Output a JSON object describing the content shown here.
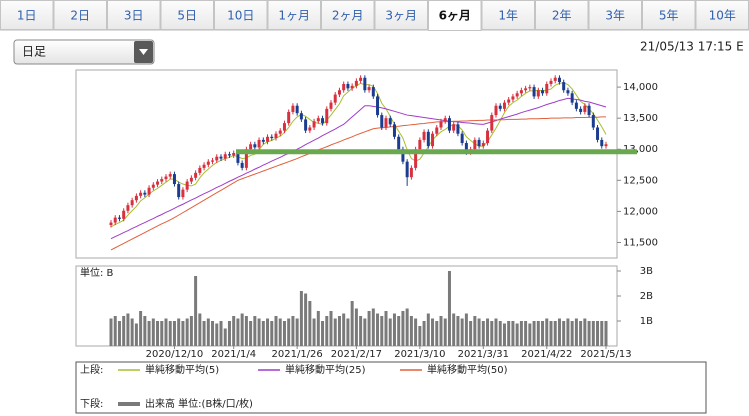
{
  "ui": {
    "tabs": [
      "1日",
      "2日",
      "3日",
      "5日",
      "10日",
      "1ヶ月",
      "2ヶ月",
      "3ヶ月",
      "6ヶ月",
      "1年",
      "2年",
      "3年",
      "5年",
      "10年"
    ],
    "active_tab": 8,
    "dropdown": "日足",
    "timestamp": "21/05/13 17:15 E"
  },
  "chart_data": {
    "type": "candlestick",
    "categories": [
      null,
      null,
      null,
      null,
      null,
      null,
      null,
      null,
      null,
      null,
      null,
      null,
      null,
      null,
      null,
      "2020/12/10",
      null,
      null,
      null,
      null,
      null,
      null,
      null,
      null,
      null,
      null,
      null,
      null,
      null,
      "2021/1/4",
      null,
      null,
      null,
      null,
      null,
      null,
      null,
      null,
      null,
      null,
      null,
      null,
      null,
      null,
      "2021/1/26",
      null,
      null,
      null,
      null,
      null,
      null,
      null,
      null,
      null,
      null,
      null,
      null,
      null,
      "2021/2/17",
      null,
      null,
      null,
      null,
      null,
      null,
      null,
      null,
      null,
      null,
      null,
      null,
      null,
      null,
      "2021/3/10",
      null,
      null,
      null,
      null,
      null,
      null,
      null,
      null,
      null,
      null,
      null,
      null,
      null,
      null,
      "2021/3/31",
      null,
      null,
      null,
      null,
      null,
      null,
      null,
      null,
      null,
      null,
      null,
      null,
      null,
      null,
      "2021/4/22",
      null,
      null,
      null,
      null,
      null,
      null,
      null,
      null,
      null,
      null,
      null,
      null,
      null,
      "2021/5/13"
    ],
    "open": [
      11780,
      11820,
      11900,
      11880,
      12010,
      12100,
      12180,
      12250,
      12300,
      12270,
      12380,
      12430,
      12480,
      12520,
      12560,
      12600,
      12440,
      12230,
      12350,
      12480,
      12540,
      12620,
      12700,
      12750,
      12800,
      12820,
      12880,
      12850,
      12920,
      12900,
      12940,
      12780,
      12700,
      13000,
      13080,
      13030,
      13150,
      13120,
      13200,
      13180,
      13250,
      13300,
      13420,
      13600,
      13700,
      13580,
      13480,
      13300,
      13350,
      13450,
      13500,
      13420,
      13650,
      13750,
      13880,
      13950,
      14050,
      13980,
      14020,
      14100,
      14150,
      13950,
      14000,
      13850,
      13550,
      13350,
      13500,
      13400,
      13200,
      13000,
      12800,
      12550,
      12700,
      13000,
      13150,
      13280,
      13050,
      13250,
      13350,
      13450,
      13500,
      13300,
      13400,
      13250,
      13100,
      12950,
      13000,
      13150,
      13050,
      13100,
      13300,
      13550,
      13700,
      13650,
      13750,
      13800,
      13850,
      13900,
      13950,
      13980,
      14000,
      13850,
      13950,
      13900,
      14050,
      14100,
      14150,
      14080,
      13950,
      13900,
      13750,
      13650,
      13600,
      13700,
      13550,
      13350,
      13150,
      13050
    ],
    "high": [
      11860,
      11940,
      11940,
      12050,
      12140,
      12220,
      12290,
      12340,
      12340,
      12420,
      12470,
      12520,
      12560,
      12600,
      12640,
      12640,
      12480,
      12390,
      12520,
      12580,
      12660,
      12740,
      12790,
      12840,
      12860,
      12920,
      12920,
      12960,
      12960,
      12980,
      12980,
      12820,
      13040,
      13120,
      13120,
      13190,
      13190,
      13240,
      13240,
      13290,
      13340,
      13460,
      13640,
      13740,
      13740,
      13620,
      13520,
      13390,
      13490,
      13540,
      13540,
      13690,
      13790,
      13920,
      13990,
      14090,
      14090,
      14060,
      14140,
      14190,
      14190,
      14040,
      14040,
      13890,
      13590,
      13540,
      13540,
      13440,
      13240,
      13040,
      12840,
      12740,
      13040,
      13190,
      13320,
      13320,
      13290,
      13390,
      13490,
      13540,
      13540,
      13440,
      13440,
      13290,
      13140,
      13040,
      13190,
      13190,
      13140,
      13340,
      13590,
      13740,
      13740,
      13790,
      13840,
      13890,
      13940,
      13990,
      14020,
      14040,
      14040,
      13990,
      13990,
      14090,
      14140,
      14190,
      14190,
      14120,
      13990,
      13940,
      13790,
      13690,
      13740,
      13740,
      13590,
      13390,
      13190,
      13120
    ],
    "low": [
      11740,
      11780,
      11840,
      11840,
      11970,
      12060,
      12140,
      12210,
      12230,
      12230,
      12340,
      12390,
      12440,
      12480,
      12520,
      12400,
      12190,
      12190,
      12310,
      12440,
      12500,
      12580,
      12660,
      12710,
      12760,
      12780,
      12810,
      12810,
      12860,
      12860,
      12740,
      12660,
      12660,
      12960,
      12990,
      12990,
      13080,
      13080,
      13140,
      13140,
      13210,
      13260,
      13380,
      13560,
      13540,
      13440,
      13260,
      13260,
      13310,
      13410,
      13380,
      13380,
      13610,
      13710,
      13840,
      13910,
      13940,
      13940,
      13980,
      14060,
      13910,
      13910,
      13810,
      13510,
      13310,
      13310,
      13360,
      13160,
      12960,
      12760,
      12410,
      12510,
      12660,
      12960,
      13110,
      13010,
      13010,
      13210,
      13310,
      13410,
      13260,
      13260,
      13210,
      13060,
      12910,
      12910,
      12960,
      13010,
      13010,
      13060,
      13260,
      13510,
      13610,
      13610,
      13710,
      13760,
      13810,
      13860,
      13910,
      13940,
      13810,
      13810,
      13860,
      13860,
      14010,
      14060,
      14040,
      13910,
      13860,
      13710,
      13610,
      13560,
      13560,
      13510,
      13310,
      13110,
      13010,
      13010
    ],
    "close": [
      11820,
      11900,
      11880,
      12010,
      12100,
      12180,
      12250,
      12300,
      12270,
      12380,
      12430,
      12480,
      12520,
      12560,
      12600,
      12440,
      12230,
      12350,
      12480,
      12540,
      12620,
      12700,
      12750,
      12800,
      12820,
      12880,
      12850,
      12920,
      12900,
      12940,
      12780,
      12700,
      13000,
      13080,
      13030,
      13150,
      13120,
      13200,
      13180,
      13250,
      13300,
      13420,
      13600,
      13700,
      13580,
      13480,
      13300,
      13350,
      13450,
      13500,
      13420,
      13650,
      13750,
      13880,
      13950,
      14050,
      13980,
      14020,
      14100,
      14150,
      13950,
      14000,
      13850,
      13550,
      13350,
      13500,
      13400,
      13200,
      13000,
      12800,
      12550,
      12700,
      13000,
      13150,
      13280,
      13050,
      13250,
      13350,
      13450,
      13500,
      13300,
      13400,
      13250,
      13100,
      12950,
      13000,
      13150,
      13050,
      13100,
      13300,
      13550,
      13700,
      13650,
      13750,
      13800,
      13850,
      13900,
      13950,
      13980,
      14000,
      13850,
      13950,
      13900,
      14050,
      14100,
      14150,
      14080,
      13950,
      13900,
      13750,
      13650,
      13600,
      13700,
      13550,
      13350,
      13150,
      13050,
      13080
    ],
    "up_color": "#d9303f",
    "down_color": "#1c3d8f",
    "series": [
      {
        "name": "単純移動平均(5)",
        "color": "#a7bf2e",
        "values": [
          11750,
          11790,
          11820,
          11860,
          11940,
          12010,
          12080,
          12170,
          12220,
          12280,
          12330,
          12370,
          12420,
          12470,
          12520,
          12520,
          12470,
          12440,
          12420,
          12410,
          12440,
          12540,
          12620,
          12680,
          12740,
          12790,
          12820,
          12850,
          12870,
          12900,
          12880,
          12850,
          12860,
          12900,
          12920,
          12990,
          13080,
          13120,
          13140,
          13180,
          13210,
          13270,
          13350,
          13450,
          13520,
          13560,
          13530,
          13480,
          13430,
          13420,
          13400,
          13470,
          13550,
          13640,
          13730,
          13860,
          13920,
          13980,
          14020,
          14060,
          14040,
          14040,
          14010,
          13900,
          13740,
          13650,
          13530,
          13400,
          13290,
          13180,
          12990,
          12850,
          12810,
          12840,
          12940,
          13040,
          13150,
          13220,
          13280,
          13320,
          13370,
          13400,
          13380,
          13310,
          13200,
          13140,
          13090,
          13050,
          13050,
          13120,
          13230,
          13340,
          13460,
          13590,
          13690,
          13750,
          13790,
          13850,
          13900,
          13940,
          13940,
          13950,
          13940,
          13950,
          13970,
          14030,
          14060,
          14070,
          14040,
          13970,
          13870,
          13770,
          13720,
          13650,
          13570,
          13470,
          13360,
          13240
        ]
      },
      {
        "name": "単純移動平均(25)",
        "color": "#a03cc8",
        "values": [
          11560,
          11595,
          11625,
          11660,
          11690,
          11725,
          11755,
          11790,
          11820,
          11855,
          11885,
          11920,
          11950,
          11985,
          12015,
          12050,
          12085,
          12115,
          12150,
          12185,
          12215,
          12250,
          12285,
          12315,
          12350,
          12385,
          12415,
          12450,
          12485,
          12515,
          12550,
          12580,
          12615,
          12645,
          12680,
          12710,
          12745,
          12775,
          12810,
          12840,
          12870,
          12905,
          12935,
          12970,
          13000,
          13035,
          13075,
          13110,
          13145,
          13180,
          13220,
          13255,
          13290,
          13325,
          13365,
          13400,
          13460,
          13520,
          13580,
          13640,
          13700,
          13700,
          13690,
          13680,
          13665,
          13650,
          13630,
          13610,
          13590,
          13570,
          13550,
          13540,
          13530,
          13520,
          13510,
          13500,
          13490,
          13480,
          13470,
          13460,
          13450,
          13445,
          13440,
          13430,
          13425,
          13420,
          13410,
          13405,
          13400,
          13420,
          13440,
          13460,
          13485,
          13505,
          13525,
          13545,
          13565,
          13590,
          13610,
          13630,
          13650,
          13670,
          13695,
          13720,
          13740,
          13760,
          13785,
          13800,
          13820,
          13810,
          13800,
          13790,
          13770,
          13760,
          13740,
          13720,
          13700,
          13680
        ]
      },
      {
        "name": "単純移動平均(50)",
        "color": "#e2603c",
        "values": [
          11380,
          11415,
          11450,
          11485,
          11520,
          11555,
          11590,
          11625,
          11660,
          11695,
          11730,
          11765,
          11800,
          11830,
          11865,
          11900,
          11940,
          11980,
          12020,
          12060,
          12100,
          12140,
          12180,
          12220,
          12260,
          12300,
          12340,
          12380,
          12420,
          12460,
          12500,
          12525,
          12550,
          12575,
          12600,
          12625,
          12650,
          12675,
          12700,
          12725,
          12750,
          12775,
          12800,
          12825,
          12850,
          12880,
          12905,
          12935,
          12960,
          12990,
          13015,
          13040,
          13070,
          13095,
          13120,
          13150,
          13175,
          13200,
          13230,
          13255,
          13280,
          13305,
          13330,
          13340,
          13345,
          13350,
          13360,
          13365,
          13370,
          13380,
          13385,
          13395,
          13400,
          13410,
          13415,
          13425,
          13430,
          13440,
          13440,
          13445,
          13445,
          13450,
          13450,
          13455,
          13455,
          13460,
          13460,
          13465,
          13465,
          13470,
          13470,
          13470,
          13475,
          13475,
          13480,
          13480,
          13480,
          13485,
          13485,
          13490,
          13490,
          13490,
          13495,
          13495,
          13500,
          13500,
          13500,
          13505,
          13505,
          13505,
          13510,
          13510,
          13510,
          13515,
          13515,
          13515,
          13520,
          13520
        ]
      }
    ],
    "support_line": {
      "value": 12960,
      "color": "#6aa84f"
    },
    "ylim": [
      11250,
      14275
    ],
    "yticks": [
      {
        "value": 11500,
        "label": "11,500"
      },
      {
        "value": 12000,
        "label": "12,000"
      },
      {
        "value": 12500,
        "label": "12,500"
      },
      {
        "value": 13000,
        "label": "13,000"
      },
      {
        "value": 13500,
        "label": "13,500"
      },
      {
        "value": 14000,
        "label": "14,000"
      }
    ],
    "volume": {
      "unit_label": "単位: B",
      "name": "出来高 単位:(B株/口/枚)",
      "color": "#7a7a7a",
      "values": [
        1.1,
        1.2,
        1.0,
        1.2,
        1.3,
        1.1,
        0.9,
        1.4,
        1.2,
        1.0,
        1.1,
        1.0,
        1.0,
        1.1,
        1.0,
        1.0,
        1.1,
        1.0,
        1.1,
        1.2,
        2.8,
        1.3,
        1.0,
        1.1,
        1.0,
        0.9,
        1.0,
        0.7,
        1.0,
        1.2,
        1.1,
        1.3,
        1.2,
        1.0,
        1.2,
        1.1,
        1.0,
        1.1,
        1.0,
        1.2,
        1.1,
        1.0,
        1.1,
        1.2,
        1.1,
        2.2,
        2.1,
        1.8,
        1.1,
        1.4,
        1.0,
        1.2,
        1.4,
        1.1,
        1.2,
        1.3,
        1.1,
        1.8,
        1.5,
        1.2,
        1.1,
        1.4,
        1.5,
        1.3,
        1.2,
        1.4,
        1.1,
        1.3,
        1.2,
        1.4,
        1.5,
        1.2,
        1.1,
        0.8,
        1.0,
        1.3,
        1.1,
        1.0,
        1.2,
        1.1,
        3.0,
        1.3,
        1.2,
        1.1,
        1.3,
        1.0,
        1.2,
        1.1,
        1.0,
        1.1,
        1.0,
        1.1,
        1.0,
        0.9,
        1.0,
        1.0,
        0.9,
        1.0,
        1.0,
        0.9,
        1.0,
        1.0,
        1.0,
        1.1,
        1.0,
        1.0,
        1.1,
        1.0,
        1.1,
        1.0,
        1.1,
        1.0,
        1.1,
        1.0,
        1.0,
        1.0,
        1.0,
        1.0
      ],
      "ylim": [
        0,
        3.2
      ],
      "yticks": [
        {
          "value": 1,
          "label": "1B"
        },
        {
          "value": 2,
          "label": "2B"
        },
        {
          "value": 3,
          "label": "3B"
        }
      ]
    },
    "legend": {
      "upper": "上段:",
      "lower": "下段:"
    }
  }
}
